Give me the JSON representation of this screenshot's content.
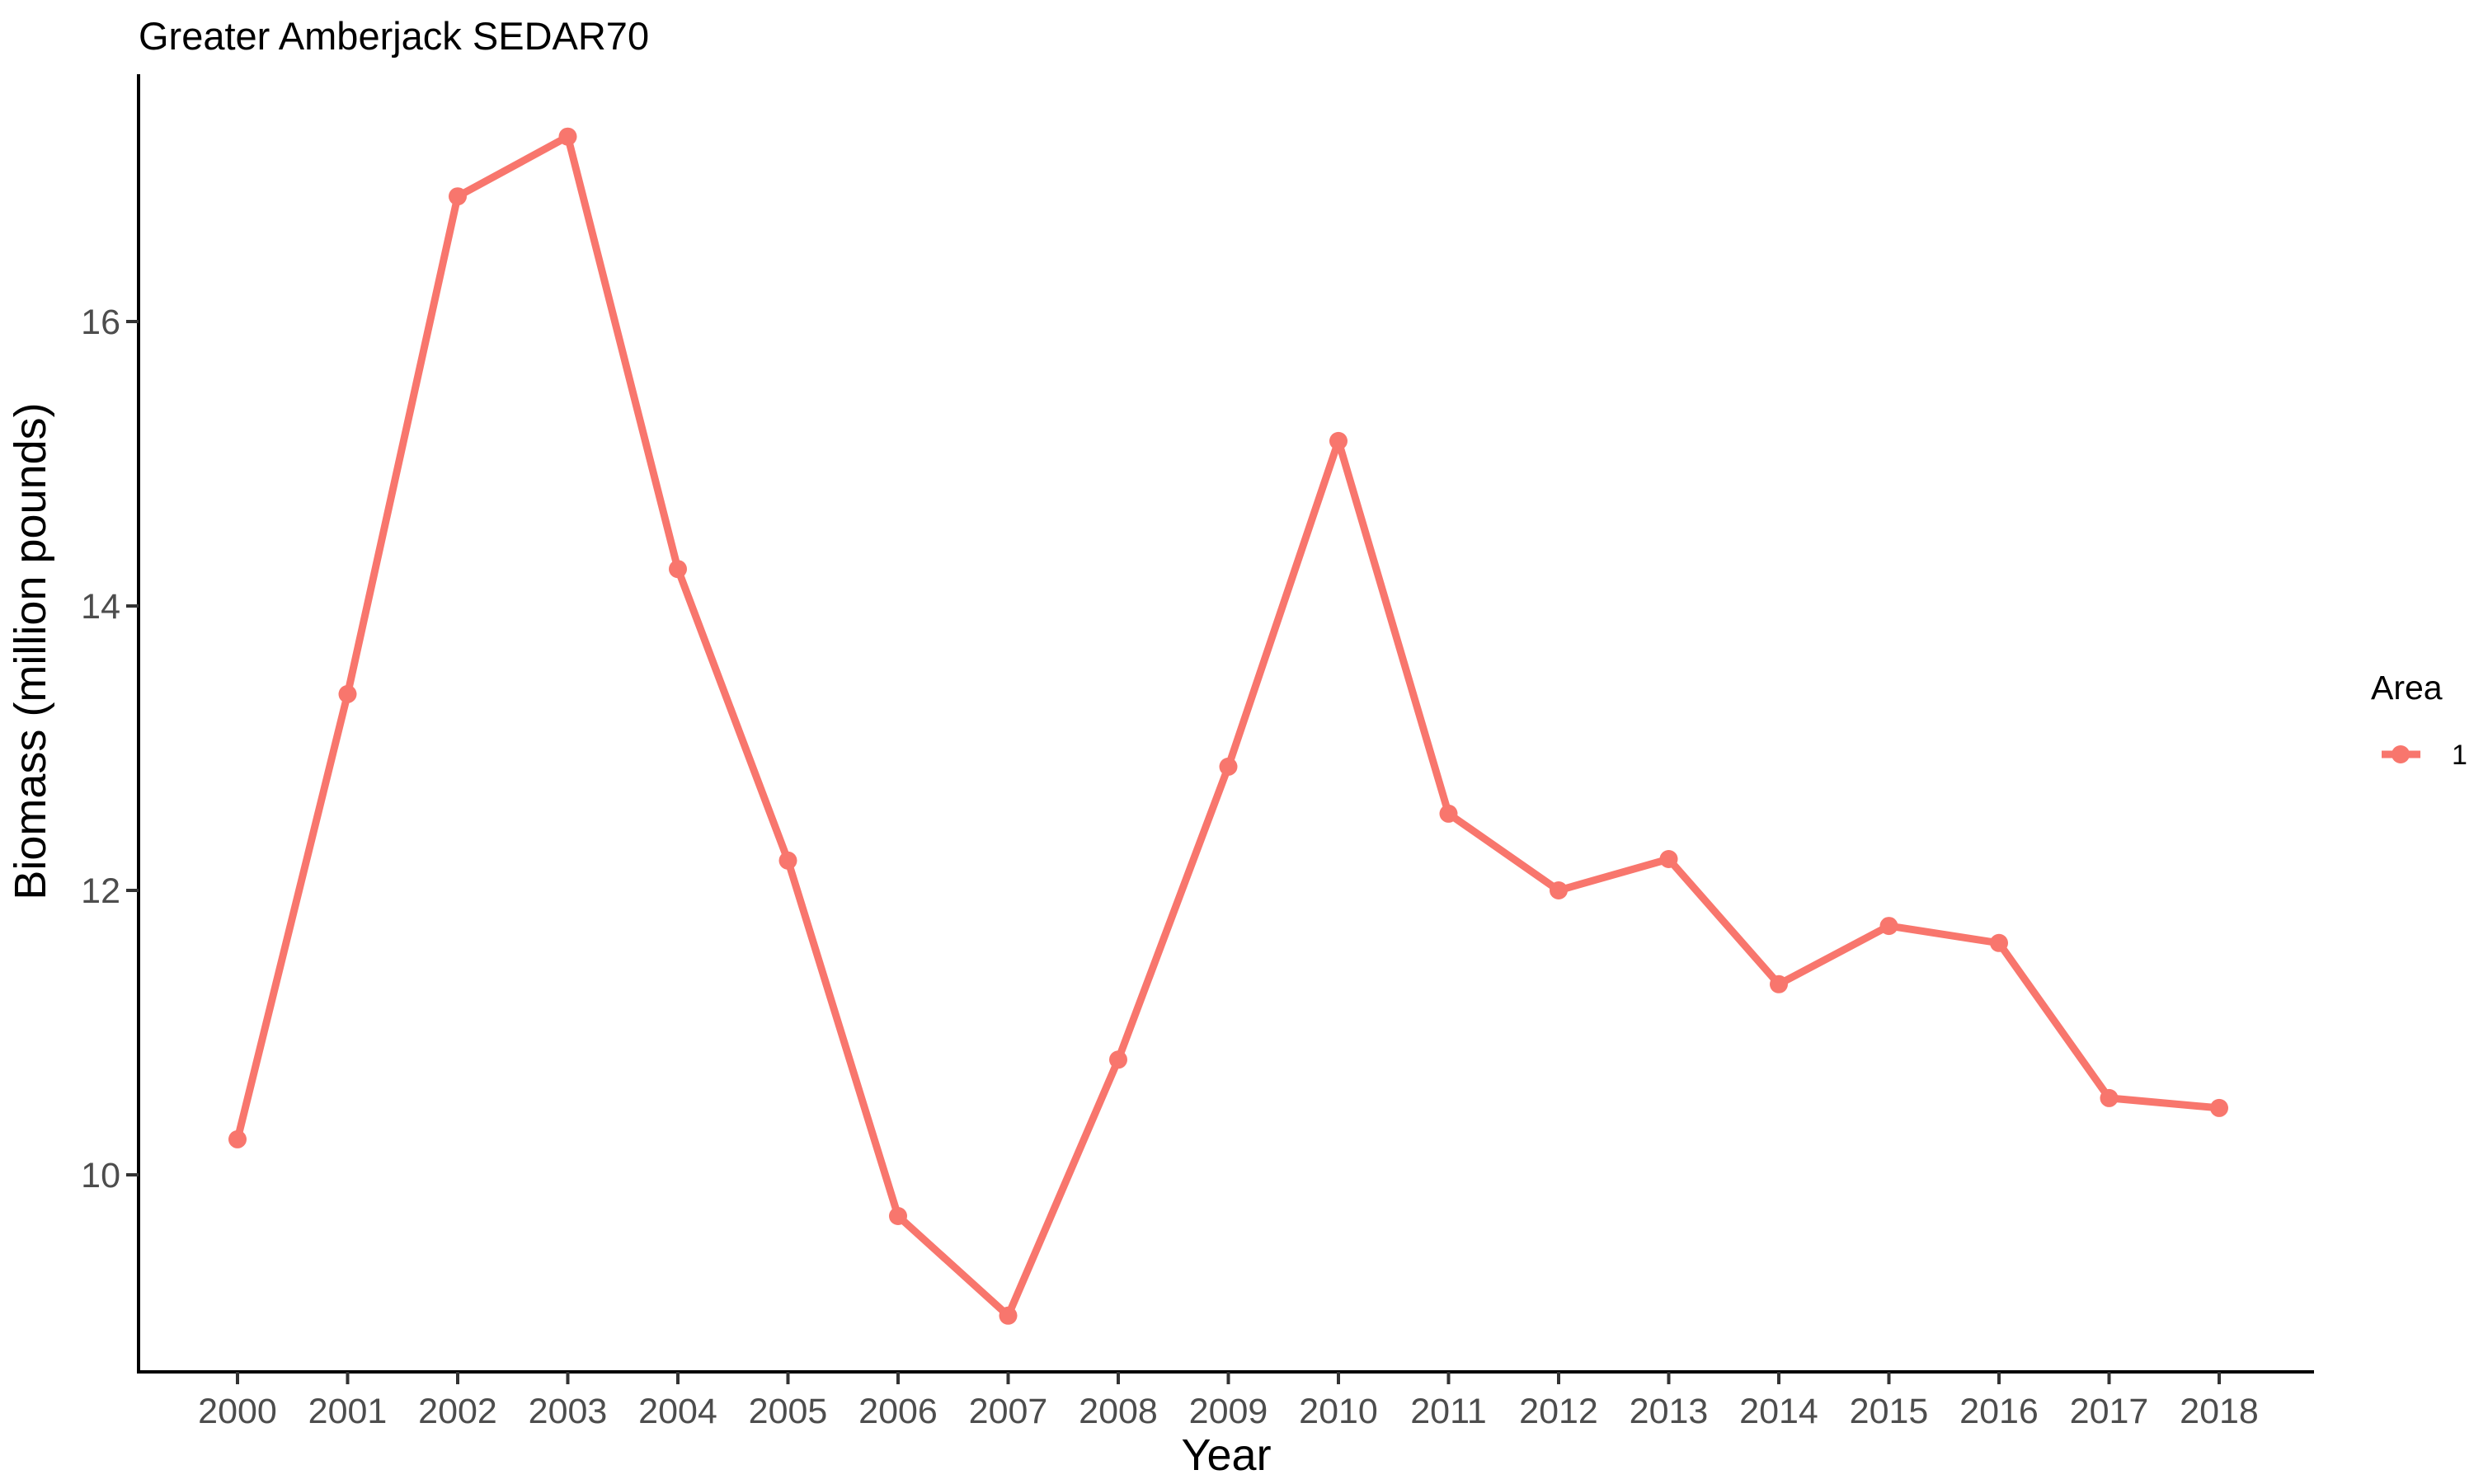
{
  "chart_data": {
    "type": "line",
    "title": "Greater Amberjack SEDAR70",
    "xlabel": "Year",
    "ylabel": "Biomass (million pounds)",
    "x": [
      "2000",
      "2001",
      "2002",
      "2003",
      "2004",
      "2005",
      "2006",
      "2007",
      "2008",
      "2009",
      "2010",
      "2011",
      "2012",
      "2013",
      "2014",
      "2015",
      "2016",
      "2017",
      "2018"
    ],
    "y_ticks": [
      10,
      12,
      14,
      16
    ],
    "y_tick_labels": [
      "10",
      "12",
      "14",
      "16"
    ],
    "ylim": [
      8.6,
      17.8
    ],
    "grid": false,
    "legend": {
      "title": "Area",
      "position": "right"
    },
    "series": [
      {
        "name": "1",
        "color": "#f8766d",
        "values": [
          10.25,
          13.38,
          16.88,
          17.3,
          14.26,
          12.21,
          9.71,
          9.01,
          10.81,
          12.87,
          15.16,
          12.54,
          12.0,
          12.22,
          11.34,
          11.75,
          11.63,
          10.54,
          10.47
        ]
      }
    ]
  }
}
